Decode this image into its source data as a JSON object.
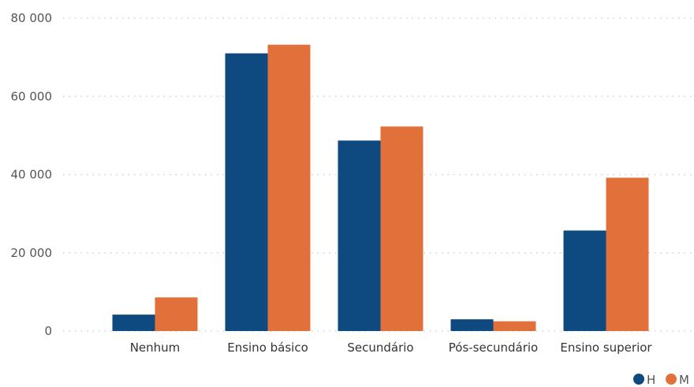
{
  "chart_data": {
    "type": "bar",
    "title": "",
    "xlabel": "",
    "ylabel": "",
    "categories": [
      "Nenhum",
      "Ensino básico",
      "Secundário",
      "Pós-secundário",
      "Ensino superior"
    ],
    "series": [
      {
        "name": "H",
        "color": "#0e4a80",
        "values": [
          4200,
          71000,
          48700,
          3000,
          25700
        ]
      },
      {
        "name": "M",
        "color": "#e2703a",
        "values": [
          8600,
          73200,
          52300,
          2500,
          39200
        ]
      }
    ],
    "ylim": [
      0,
      80000
    ],
    "yticks": [
      0,
      20000,
      40000,
      60000,
      80000
    ],
    "ytick_labels": [
      "0",
      "20 000",
      "40 000",
      "60 000",
      "80 000"
    ],
    "grid": true,
    "legend_position": "bottom-right"
  }
}
